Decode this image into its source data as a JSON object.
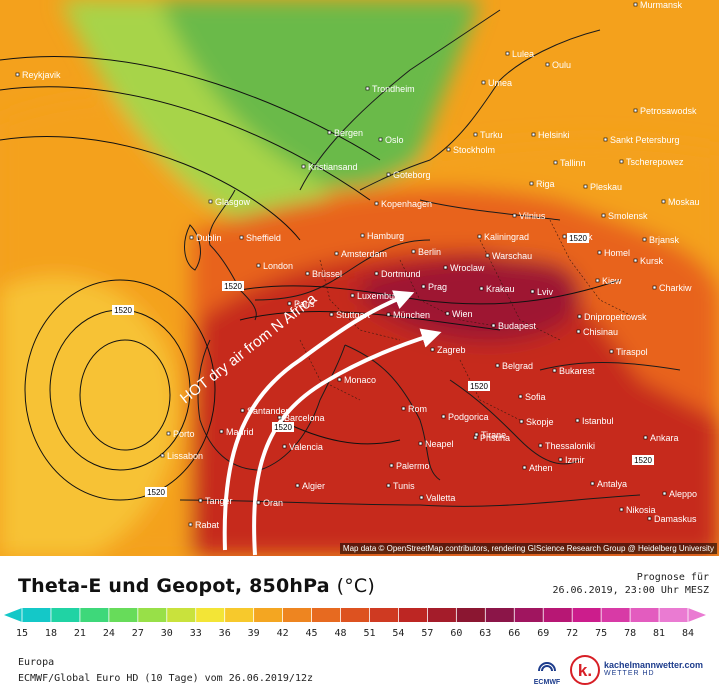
{
  "map": {
    "attribution": "Map data © OpenStreetMap contributors, rendering GIScience Research Group @ Heidelberg University",
    "annotation": "HOT dry air from N Africa",
    "cities": [
      {
        "name": "Murmansk"
      },
      {
        "name": "Reykjavik"
      },
      {
        "name": "Lulea"
      },
      {
        "name": "Oulu"
      },
      {
        "name": "Umea"
      },
      {
        "name": "Trondheim"
      },
      {
        "name": "Petrosawodsk"
      },
      {
        "name": "Bergen"
      },
      {
        "name": "Turku"
      },
      {
        "name": "Helsinki"
      },
      {
        "name": "Oslo"
      },
      {
        "name": "Stockholm"
      },
      {
        "name": "Sankt Petersburg"
      },
      {
        "name": "Tallinn"
      },
      {
        "name": "Tscherepowez"
      },
      {
        "name": "Kristiansand"
      },
      {
        "name": "Goteborg"
      },
      {
        "name": "Riga"
      },
      {
        "name": "Pleskau"
      },
      {
        "name": "Glasgow"
      },
      {
        "name": "Kopenhagen"
      },
      {
        "name": "Moskau"
      },
      {
        "name": "Smolensk"
      },
      {
        "name": "Vilnius"
      },
      {
        "name": "Minsk"
      },
      {
        "name": "Dublin"
      },
      {
        "name": "Sheffield"
      },
      {
        "name": "Hamburg"
      },
      {
        "name": "Kaliningrad"
      },
      {
        "name": "Brjansk"
      },
      {
        "name": "Berlin"
      },
      {
        "name": "Warschau"
      },
      {
        "name": "Homel"
      },
      {
        "name": "Amsterdam"
      },
      {
        "name": "London"
      },
      {
        "name": "Kursk"
      },
      {
        "name": "Brüssel"
      },
      {
        "name": "Dortmund"
      },
      {
        "name": "Wroclaw"
      },
      {
        "name": "Kiew"
      },
      {
        "name": "Charkiw"
      },
      {
        "name": "Luxemburg"
      },
      {
        "name": "Prag"
      },
      {
        "name": "Krakau"
      },
      {
        "name": "Lviv"
      },
      {
        "name": "Paris"
      },
      {
        "name": "Stuttgart"
      },
      {
        "name": "München"
      },
      {
        "name": "Wien"
      },
      {
        "name": "Dnipropetrowsk"
      },
      {
        "name": "Budapest"
      },
      {
        "name": "Chisinau"
      },
      {
        "name": "Zagreb"
      },
      {
        "name": "Tiraspol"
      },
      {
        "name": "Monaco"
      },
      {
        "name": "Belgrad"
      },
      {
        "name": "Bukarest"
      },
      {
        "name": "Santander"
      },
      {
        "name": "Porto"
      },
      {
        "name": "Barcelona"
      },
      {
        "name": "Sofia"
      },
      {
        "name": "Rom"
      },
      {
        "name": "Podgorica"
      },
      {
        "name": "Skopje"
      },
      {
        "name": "Istanbul"
      },
      {
        "name": "Madrid"
      },
      {
        "name": "Valencia"
      },
      {
        "name": "Pristina"
      },
      {
        "name": "Tirane"
      },
      {
        "name": "Neapel"
      },
      {
        "name": "Thessaloniki"
      },
      {
        "name": "Ankara"
      },
      {
        "name": "Lissabon"
      },
      {
        "name": "Algier"
      },
      {
        "name": "Palermo"
      },
      {
        "name": "Athen"
      },
      {
        "name": "Izmir"
      },
      {
        "name": "Antalya"
      },
      {
        "name": "Tanger"
      },
      {
        "name": "Oran"
      },
      {
        "name": "Tunis"
      },
      {
        "name": "Valletta"
      },
      {
        "name": "Aleppo"
      },
      {
        "name": "Rabat"
      },
      {
        "name": "Nikosia"
      },
      {
        "name": "Damaskus"
      }
    ],
    "geopot_labels": [
      "1520",
      "1520",
      "1520",
      "1520",
      "1520",
      "1520",
      "1520"
    ],
    "colors": {
      "ocean_cool": "#f7c234",
      "temperate": "#f4a11c",
      "warm": "#e8641f",
      "hot": "#c6291f",
      "very_hot": "#9e1630",
      "arctic_green": "#6aba4a",
      "mint": "#a7d44a",
      "arrow": "#ffffff"
    }
  },
  "footer": {
    "title_main": "Theta-E und Geopot, 850hPa",
    "title_unit": "(°C)",
    "prognose_label": "Prognose für",
    "prognose_value": "26.06.2019, 23:00 Uhr MESZ",
    "colorbar_ticks": [
      "15",
      "18",
      "21",
      "24",
      "27",
      "30",
      "33",
      "36",
      "39",
      "42",
      "45",
      "48",
      "51",
      "54",
      "57",
      "60",
      "63",
      "66",
      "69",
      "72",
      "75",
      "78",
      "81",
      "84"
    ],
    "colorbar_colors": [
      "#14c8c8",
      "#20d3a4",
      "#3ed87a",
      "#67dc5a",
      "#98e048",
      "#c9e23c",
      "#f3e536",
      "#f7c92c",
      "#f4a621",
      "#ee8520",
      "#e76a20",
      "#dd5220",
      "#cf3a22",
      "#bd2623",
      "#a41c2a",
      "#8b1631",
      "#8b1548",
      "#a0155f",
      "#b71774",
      "#cc1d8c",
      "#d83aa6",
      "#e35cbf",
      "#ea7bd2"
    ],
    "region": "Europa",
    "model": "ECMWF/Global Euro HD (10 Tage) vom 26.06.2019/12z",
    "ecmwf_logo": "ECMWF",
    "brand_name": "kachelmannwetter.com",
    "brand_sub": "WETTER HD"
  }
}
